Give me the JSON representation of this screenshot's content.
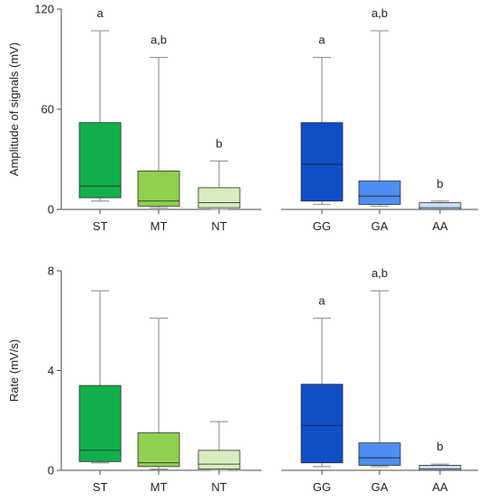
{
  "chart_data": [
    {
      "type": "box",
      "ylabel": "Amplitude of signals (mV)",
      "ylim": [
        0,
        120
      ],
      "yticks": [
        "0",
        "60",
        "120"
      ],
      "groups": [
        {
          "categories": [
            "ST",
            "MT",
            "NT"
          ],
          "boxes": [
            {
              "min": 5,
              "q1": 7,
              "median": 14,
              "q3": 52,
              "max": 107,
              "color": "#12b04a",
              "letter": "a"
            },
            {
              "min": 1,
              "q1": 2,
              "median": 5,
              "q3": 23,
              "max": 91,
              "color": "#8fd14f",
              "letter": "a,b"
            },
            {
              "min": 0,
              "q1": 1,
              "median": 4,
              "q3": 13,
              "max": 29,
              "color": "#d8edbd",
              "letter": "b"
            }
          ]
        },
        {
          "categories": [
            "GG",
            "GA",
            "AA"
          ],
          "boxes": [
            {
              "min": 3,
              "q1": 5,
              "median": 27,
              "q3": 52,
              "max": 91,
              "color": "#0e4fc7",
              "letter": "a"
            },
            {
              "min": 2,
              "q1": 3,
              "median": 8,
              "q3": 17,
              "max": 107,
              "color": "#4d8ef2",
              "letter": "a,b"
            },
            {
              "min": 0,
              "q1": 0,
              "median": 1,
              "q3": 4,
              "max": 5,
              "color": "#c8dcf6",
              "letter": "b"
            }
          ]
        }
      ]
    },
    {
      "type": "box",
      "ylabel": "Rate (mV/s)",
      "ylim": [
        0,
        8
      ],
      "yticks": [
        "0",
        "4",
        "8"
      ],
      "groups": [
        {
          "categories": [
            "ST",
            "MT",
            "NT"
          ],
          "boxes": [
            {
              "min": 0.3,
              "q1": 0.35,
              "median": 0.8,
              "q3": 3.4,
              "max": 7.2,
              "color": "#12b04a",
              "letter": ""
            },
            {
              "min": 0.05,
              "q1": 0.15,
              "median": 0.3,
              "q3": 1.5,
              "max": 6.1,
              "color": "#8fd14f",
              "letter": ""
            },
            {
              "min": 0.0,
              "q1": 0.05,
              "median": 0.25,
              "q3": 0.8,
              "max": 1.95,
              "color": "#d8edbd",
              "letter": ""
            }
          ]
        },
        {
          "categories": [
            "GG",
            "GA",
            "AA"
          ],
          "boxes": [
            {
              "min": 0.15,
              "q1": 0.3,
              "median": 1.8,
              "q3": 3.45,
              "max": 6.1,
              "color": "#0e4fc7",
              "letter": "a"
            },
            {
              "min": 0.15,
              "q1": 0.2,
              "median": 0.5,
              "q3": 1.1,
              "max": 7.2,
              "color": "#4d8ef2",
              "letter": "a,b"
            },
            {
              "min": 0.0,
              "q1": 0.0,
              "median": 0.05,
              "q3": 0.2,
              "max": 0.25,
              "color": "#c8dcf6",
              "letter": "b"
            }
          ]
        }
      ]
    }
  ]
}
